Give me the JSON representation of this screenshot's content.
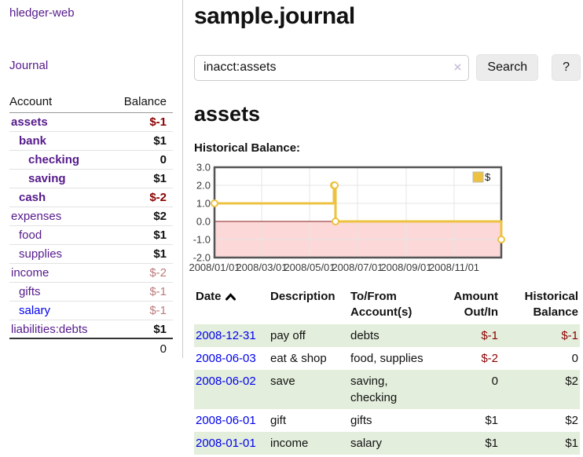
{
  "app": {
    "brand": "hledger-web",
    "nav": {
      "journal": "Journal"
    }
  },
  "sidebar": {
    "columns": {
      "account": "Account",
      "balance": "Balance"
    },
    "rows": [
      {
        "account": "assets",
        "balance": "$-1"
      },
      {
        "account": "bank",
        "balance": "$1"
      },
      {
        "account": "checking",
        "balance": "0"
      },
      {
        "account": "saving",
        "balance": "$1"
      },
      {
        "account": "cash",
        "balance": "$-2"
      },
      {
        "account": "expenses",
        "balance": "$2"
      },
      {
        "account": "food",
        "balance": "$1"
      },
      {
        "account": "supplies",
        "balance": "$1"
      },
      {
        "account": "income",
        "balance": "$-2"
      },
      {
        "account": "gifts",
        "balance": "$-1"
      },
      {
        "account": "salary",
        "balance": "$-1"
      },
      {
        "account": "liabilities:debts",
        "balance": "$1"
      }
    ],
    "total": "0"
  },
  "header": {
    "title": "sample.journal"
  },
  "search": {
    "value": "inacct:assets",
    "clear_icon": "×",
    "button_label": "Search",
    "help_label": "?"
  },
  "account_page": {
    "title": "assets",
    "chart_heading": "Historical Balance:"
  },
  "chart_data": {
    "type": "line",
    "style": "step-after",
    "title": "Historical Balance:",
    "series": [
      {
        "name": "$",
        "color": "#edc240",
        "points": [
          [
            "2008-01-01",
            1
          ],
          [
            "2008-06-01",
            2
          ],
          [
            "2008-06-02",
            2
          ],
          [
            "2008-06-03",
            0
          ],
          [
            "2008-12-31",
            -1
          ]
        ]
      }
    ],
    "ylim": [
      -2,
      3
    ],
    "yticks": [
      "3.0",
      "2.0",
      "1.0",
      "0.0",
      "-1.0",
      "-2.0"
    ],
    "xticks": [
      "2008/01/01",
      "2008/03/01",
      "2008/05/01",
      "2008/07/01",
      "2008/09/01",
      "2008/11/01"
    ],
    "x_range": [
      "2008-01-01",
      "2008-12-31"
    ],
    "grid": true,
    "legend": {
      "label": "$",
      "position": "top-right"
    },
    "colors": {
      "negative_region": "#fcd8d8",
      "zero_line": "#8b1f1f",
      "border": "#545454",
      "gridline": "#e6e6e6"
    }
  },
  "register": {
    "sort": "ascending",
    "columns": [
      "Date",
      "Description",
      "To/From Account(s)",
      "Amount Out/In",
      "Historical Balance"
    ],
    "rows": [
      {
        "date": "2008-12-31",
        "description": "pay off",
        "accounts": "debts",
        "amount": "$-1",
        "balance": "$-1"
      },
      {
        "date": "2008-06-03",
        "description": "eat & shop",
        "accounts": "food, supplies",
        "amount": "$-2",
        "balance": "0"
      },
      {
        "date": "2008-06-02",
        "description": "save",
        "accounts": "saving, checking",
        "amount": "0",
        "balance": "$2"
      },
      {
        "date": "2008-06-01",
        "description": "gift",
        "accounts": "gifts",
        "amount": "$1",
        "balance": "$2"
      },
      {
        "date": "2008-01-01",
        "description": "income",
        "accounts": "salary",
        "amount": "$1",
        "balance": "$1"
      }
    ]
  }
}
